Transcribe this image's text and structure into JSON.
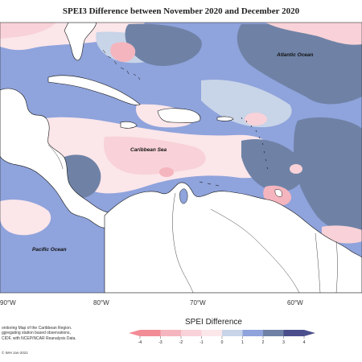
{
  "title": "SPEI3 Difference between November 2020 and December 2020",
  "labels": {
    "atlantic": "Atlantic Ocean",
    "caribbean": "Caribbean Sea",
    "pacific": "Pacific Ocean"
  },
  "longitudes": [
    "90°W",
    "80°W",
    "70°W",
    "60°W"
  ],
  "legend": {
    "title": "SPEI Difference",
    "ticks": [
      "-4",
      "-3",
      "-2",
      "-1",
      "0",
      "1",
      "2",
      "3",
      "4"
    ],
    "colors": [
      "#f28c95",
      "#f5b5be",
      "#f8d2d8",
      "#fbe6ea",
      "#f2f2f4",
      "#c8d4e8",
      "#8fa3dc",
      "#6f82a6",
      "#4a4f8c"
    ]
  },
  "credits": [
    "onitoring Map of the Caribbean Region.",
    "ggregating station based observations,",
    "CIDF, with NCEP/NCAR Reanalysis Data."
  ],
  "copyright": "© IMH  Jan-2021",
  "colors": {
    "land": "#ffffff",
    "coast": "#111111",
    "pale_pink": "#fbe6ea",
    "light_pink": "#f8d2d8",
    "pink": "#f5b5be",
    "light_blue": "#c8d4e8",
    "blue": "#8fa3dc",
    "slate": "#6f82a6"
  }
}
